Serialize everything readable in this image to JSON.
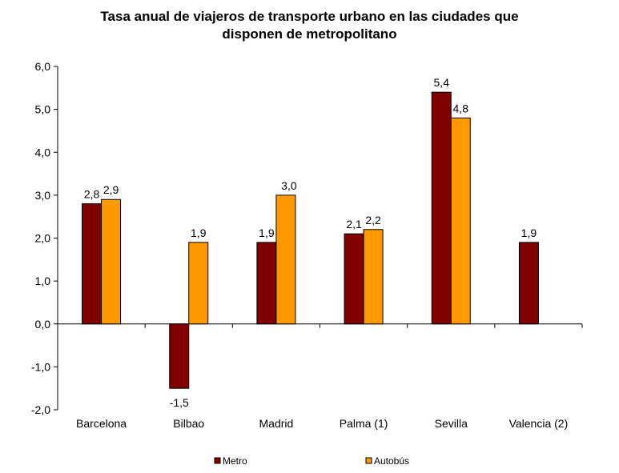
{
  "title_line1": "Tasa anual de viajeros de transporte urbano en las ciudades que",
  "title_line2": "disponen de metropolitano",
  "colors": {
    "metro": "#800000",
    "autobus": "#FF9900",
    "axis": "#000000"
  },
  "chart_data": {
    "type": "bar",
    "categories": [
      "Barcelona",
      "Bilbao",
      "Madrid",
      "Palma (1)",
      "Sevilla",
      "Valencia (2)"
    ],
    "series": [
      {
        "name": "Metro",
        "values": [
          2.8,
          -1.5,
          1.9,
          2.1,
          5.4,
          1.9
        ],
        "labels": [
          "2,8",
          "-1,5",
          "1,9",
          "2,1",
          "5,4",
          "1,9"
        ]
      },
      {
        "name": "Autobús",
        "values": [
          2.9,
          1.9,
          3.0,
          2.2,
          4.8,
          null
        ],
        "labels": [
          "2,9",
          "1,9",
          "3,0",
          "2,2",
          "4,8",
          null
        ]
      }
    ],
    "ylim": [
      -2.0,
      6.0
    ],
    "yticks": [
      6.0,
      5.0,
      4.0,
      3.0,
      2.0,
      1.0,
      0.0,
      -1.0,
      -2.0
    ],
    "ytick_labels": [
      "6,0",
      "5,0",
      "4,0",
      "3,0",
      "2,0",
      "1,0",
      "0,0",
      "-1,0",
      "-2,0"
    ],
    "legend_position": "bottom",
    "grid": false
  }
}
